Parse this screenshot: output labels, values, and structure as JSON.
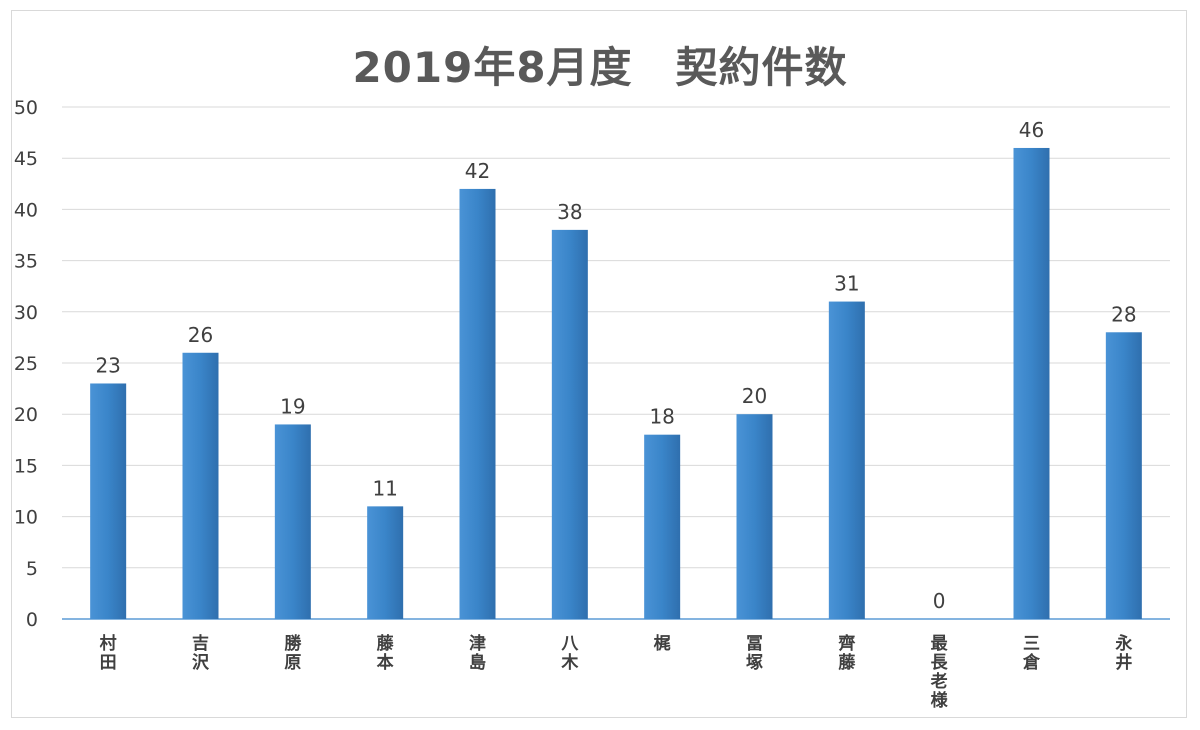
{
  "chart_data": {
    "type": "bar",
    "title": "2019年8月度　契約件数",
    "categories": [
      "村田",
      "吉沢",
      "勝原",
      "藤本",
      "津島",
      "八木",
      "梶",
      "冨塚",
      "齊藤",
      "最長老様",
      "三倉",
      "永井"
    ],
    "values": [
      23,
      26,
      19,
      11,
      42,
      38,
      18,
      20,
      31,
      0,
      46,
      28
    ],
    "ylim": [
      0,
      50
    ],
    "yticks": [
      "0",
      "5",
      "10",
      "15",
      "20",
      "25",
      "30",
      "35",
      "40",
      "45",
      "50"
    ],
    "xlabel": "",
    "ylabel": "",
    "grid": true,
    "legend": "none",
    "bar_color": "#3a85c9",
    "bar_color_dark": "#2f6fae"
  }
}
